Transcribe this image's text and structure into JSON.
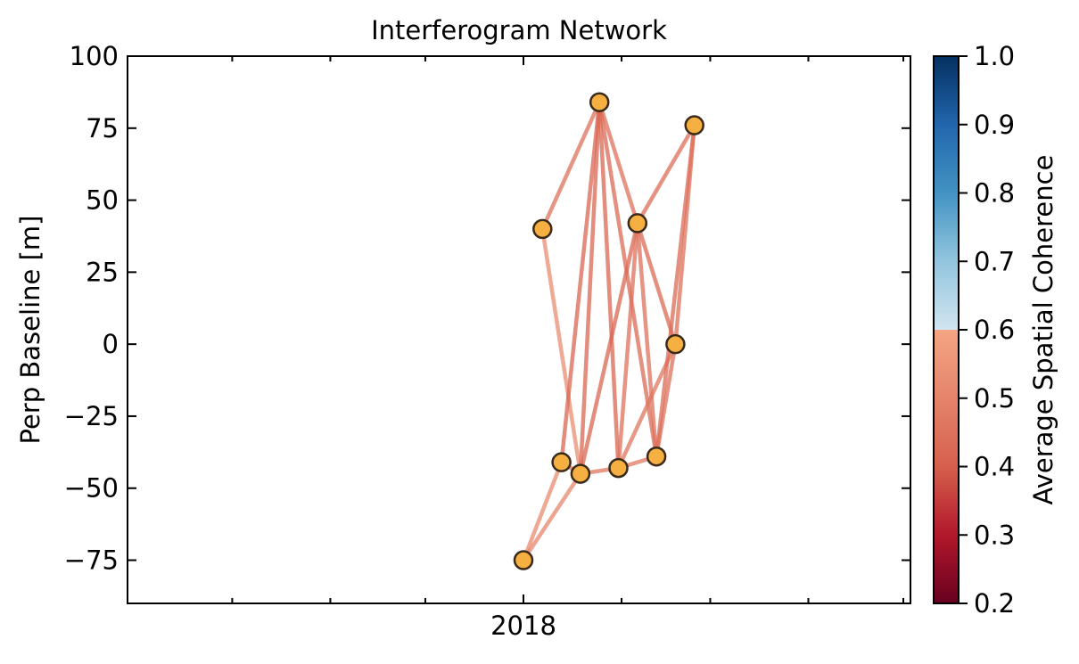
{
  "chart_data": {
    "type": "network",
    "title": "Interferogram Network",
    "xlabel": "",
    "ylabel": "Perp Baseline [m]",
    "x_tick_labels": [
      "2018"
    ],
    "y_ticks": [
      100,
      75,
      50,
      25,
      0,
      -25,
      -50,
      -75
    ],
    "y_tick_labels": [
      "100",
      "75",
      "50",
      "25",
      "0",
      "−25",
      "−50",
      "−75"
    ],
    "ylim": [
      -90,
      100
    ],
    "colorbar": {
      "label": "Average Spatial Coherence",
      "range": [
        0.2,
        1.0
      ],
      "ticks": [
        0.2,
        0.3,
        0.4,
        0.5,
        0.6,
        0.7,
        0.8,
        0.9,
        1.0
      ],
      "tick_labels": [
        "0.2",
        "0.3",
        "0.4",
        "0.5",
        "0.6",
        "0.7",
        "0.8",
        "0.9",
        "1.0"
      ],
      "colormap": "RdBu",
      "truncated_below": 0.7
    },
    "acquisitions": [
      {
        "date": "2018-01-01",
        "perp_baseline": -75
      },
      {
        "date": "2018-01-07",
        "perp_baseline": 40
      },
      {
        "date": "2018-01-13",
        "perp_baseline": -41
      },
      {
        "date": "2018-01-19",
        "perp_baseline": -45
      },
      {
        "date": "2018-01-25",
        "perp_baseline": 84
      },
      {
        "date": "2018-01-31",
        "perp_baseline": -43
      },
      {
        "date": "2018-02-06",
        "perp_baseline": 42
      },
      {
        "date": "2018-02-12",
        "perp_baseline": -39
      },
      {
        "date": "2018-02-18",
        "perp_baseline": 0
      },
      {
        "date": "2018-02-24",
        "perp_baseline": 76
      }
    ],
    "interferograms": [
      {
        "ref": "2018-01-01",
        "sec": "2018-01-13",
        "coherence": 0.62
      },
      {
        "ref": "2018-01-01",
        "sec": "2018-01-19",
        "coherence": 0.61
      },
      {
        "ref": "2018-01-07",
        "sec": "2018-01-19",
        "coherence": 0.63
      },
      {
        "ref": "2018-01-07",
        "sec": "2018-01-25",
        "coherence": 0.55
      },
      {
        "ref": "2018-01-13",
        "sec": "2018-01-19",
        "coherence": 0.56
      },
      {
        "ref": "2018-01-13",
        "sec": "2018-01-25",
        "coherence": 0.52
      },
      {
        "ref": "2018-01-19",
        "sec": "2018-01-25",
        "coherence": 0.52
      },
      {
        "ref": "2018-01-19",
        "sec": "2018-01-31",
        "coherence": 0.56
      },
      {
        "ref": "2018-01-19",
        "sec": "2018-02-06",
        "coherence": 0.52
      },
      {
        "ref": "2018-01-25",
        "sec": "2018-01-31",
        "coherence": 0.52
      },
      {
        "ref": "2018-01-25",
        "sec": "2018-02-06",
        "coherence": 0.55
      },
      {
        "ref": "2018-01-25",
        "sec": "2018-02-12",
        "coherence": 0.53
      },
      {
        "ref": "2018-01-31",
        "sec": "2018-02-06",
        "coherence": 0.55
      },
      {
        "ref": "2018-01-31",
        "sec": "2018-02-12",
        "coherence": 0.57
      },
      {
        "ref": "2018-01-31",
        "sec": "2018-02-18",
        "coherence": 0.56
      },
      {
        "ref": "2018-02-06",
        "sec": "2018-02-18",
        "coherence": 0.53
      },
      {
        "ref": "2018-02-06",
        "sec": "2018-02-12",
        "coherence": 0.55
      },
      {
        "ref": "2018-02-06",
        "sec": "2018-02-24",
        "coherence": 0.54
      },
      {
        "ref": "2018-02-12",
        "sec": "2018-02-24",
        "coherence": 0.53
      },
      {
        "ref": "2018-02-12",
        "sec": "2018-02-18",
        "coherence": 0.55
      },
      {
        "ref": "2018-02-18",
        "sec": "2018-02-24",
        "coherence": 0.55
      }
    ],
    "marker_color": "#f5b041",
    "marker_edge_color": "#3a2a1a",
    "grid": false
  }
}
